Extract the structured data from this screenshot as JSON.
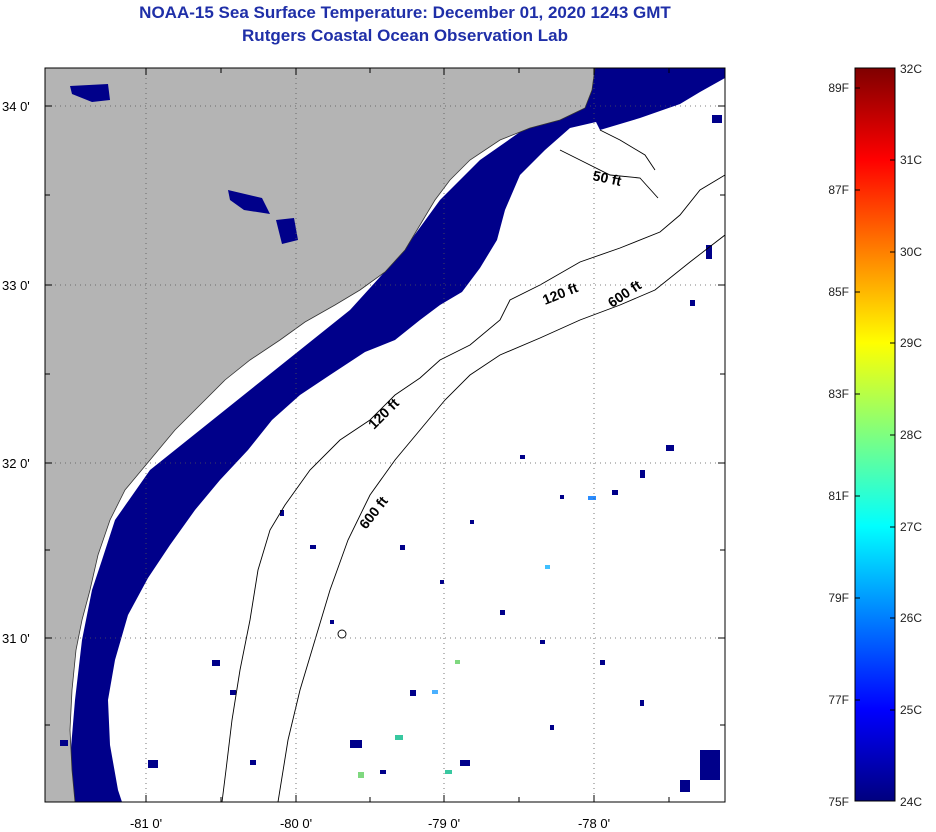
{
  "title": "NOAA-15 Sea Surface Temperature:  December 01, 2020 1243 GMT",
  "subtitle": "Rutgers Coastal Ocean Observation Lab",
  "lat_labels": [
    "34 0'",
    "33 0'",
    "32 0'",
    "31 0'"
  ],
  "lon_labels": [
    "-81 0'",
    "-80 0'",
    "-79 0'",
    "-78 0'"
  ],
  "contours": {
    "c50_a": "50 ft",
    "c120_a": "120 ft",
    "c120_b": "120 ft",
    "c600_a": "600 ft",
    "c600_b": "600 ft"
  },
  "colorbar": {
    "f_labels": [
      "89F",
      "87F",
      "85F",
      "83F",
      "81F",
      "79F",
      "77F",
      "75F"
    ],
    "c_labels": [
      "32C",
      "31C",
      "30C",
      "29C",
      "28C",
      "27C",
      "26C",
      "25C",
      "24C"
    ],
    "stops": [
      "#00007f",
      "#0000ff",
      "#007fff",
      "#00ffff",
      "#7fff7f",
      "#ffff00",
      "#ff7f00",
      "#ff0000",
      "#7f0000"
    ]
  },
  "colors": {
    "land": "#b4b4b4",
    "cold_water": "#00008a",
    "no_data": "#ffffff",
    "title": "#1f2fa8"
  }
}
